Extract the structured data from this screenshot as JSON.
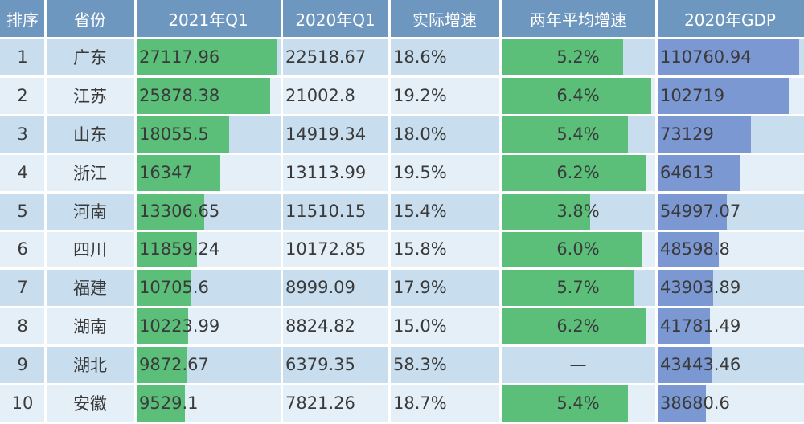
{
  "chart_data": {
    "type": "table",
    "columns": [
      "排序",
      "省份",
      "2021年Q1",
      "2020年Q1",
      "实际增速",
      "两年平均增速",
      "2020年GDP"
    ],
    "rows": [
      {
        "rank": "1",
        "province": "广东",
        "q1_2021": "27117.96",
        "q1_2020": "22518.67",
        "growth": "18.6%",
        "avg_growth": "5.2%",
        "gdp_2020": "110760.94"
      },
      {
        "rank": "2",
        "province": "江苏",
        "q1_2021": "25878.38",
        "q1_2020": "21002.8",
        "growth": "19.2%",
        "avg_growth": "6.4%",
        "gdp_2020": "102719"
      },
      {
        "rank": "3",
        "province": "山东",
        "q1_2021": "18055.5",
        "q1_2020": "14919.34",
        "growth": "18.0%",
        "avg_growth": "5.4%",
        "gdp_2020": "73129"
      },
      {
        "rank": "4",
        "province": "浙江",
        "q1_2021": "16347",
        "q1_2020": "13113.99",
        "growth": "19.5%",
        "avg_growth": "6.2%",
        "gdp_2020": "64613"
      },
      {
        "rank": "5",
        "province": "河南",
        "q1_2021": "13306.65",
        "q1_2020": "11510.15",
        "growth": "15.4%",
        "avg_growth": "3.8%",
        "gdp_2020": "54997.07"
      },
      {
        "rank": "6",
        "province": "四川",
        "q1_2021": "11859.24",
        "q1_2020": "10172.85",
        "growth": "15.8%",
        "avg_growth": "6.0%",
        "gdp_2020": "48598.8"
      },
      {
        "rank": "7",
        "province": "福建",
        "q1_2021": "10705.6",
        "q1_2020": "8999.09",
        "growth": "17.9%",
        "avg_growth": "5.7%",
        "gdp_2020": "43903.89"
      },
      {
        "rank": "8",
        "province": "湖南",
        "q1_2021": "10223.99",
        "q1_2020": "8824.82",
        "growth": "15.0%",
        "avg_growth": "6.2%",
        "gdp_2020": "41781.49"
      },
      {
        "rank": "9",
        "province": "湖北",
        "q1_2021": "9872.67",
        "q1_2020": "6379.35",
        "growth": "58.3%",
        "avg_growth": "—",
        "gdp_2020": "43443.46"
      },
      {
        "rank": "10",
        "province": "安徽",
        "q1_2021": "9529.1",
        "q1_2020": "7821.26",
        "growth": "18.7%",
        "avg_growth": "5.4%",
        "gdp_2020": "38680.6"
      }
    ],
    "databars": [
      {
        "column": "q1_2021",
        "color": "#5bbf7a"
      },
      {
        "column": "avg_growth",
        "color": "#5bbf7a"
      },
      {
        "column": "gdp_2020",
        "color": "#7b98d3"
      }
    ]
  }
}
